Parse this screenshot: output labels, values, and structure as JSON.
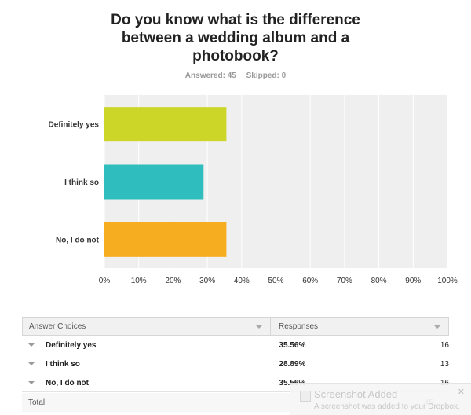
{
  "question": {
    "title": "Do you know what is the difference between a wedding album and a photobook?",
    "answered_label": "Answered: 45",
    "skipped_label": "Skipped: 0"
  },
  "chart_data": {
    "type": "bar",
    "orientation": "horizontal",
    "categories": [
      "Definitely yes",
      "I think so",
      "No, I do not"
    ],
    "values": [
      35.56,
      28.89,
      35.56
    ],
    "colors": [
      "#cbd628",
      "#2fbebd",
      "#f6ad1f"
    ],
    "xlim": [
      0,
      100
    ],
    "xticks": [
      "0%",
      "10%",
      "20%",
      "30%",
      "40%",
      "50%",
      "60%",
      "70%",
      "80%",
      "90%",
      "100%"
    ],
    "grid": true
  },
  "table": {
    "col1_header": "Answer Choices",
    "col2_header": "Responses",
    "rows": [
      {
        "label": "Definitely yes",
        "percent": "35.56%",
        "count": "16"
      },
      {
        "label": "I think so",
        "percent": "28.89%",
        "count": "13"
      },
      {
        "label": "No, I do not",
        "percent": "35.56%",
        "count": "16"
      }
    ],
    "total_label": "Total",
    "total_value": "45"
  },
  "notification": {
    "title": "Screenshot Added",
    "message": "A screenshot was added to your Dropbox."
  }
}
